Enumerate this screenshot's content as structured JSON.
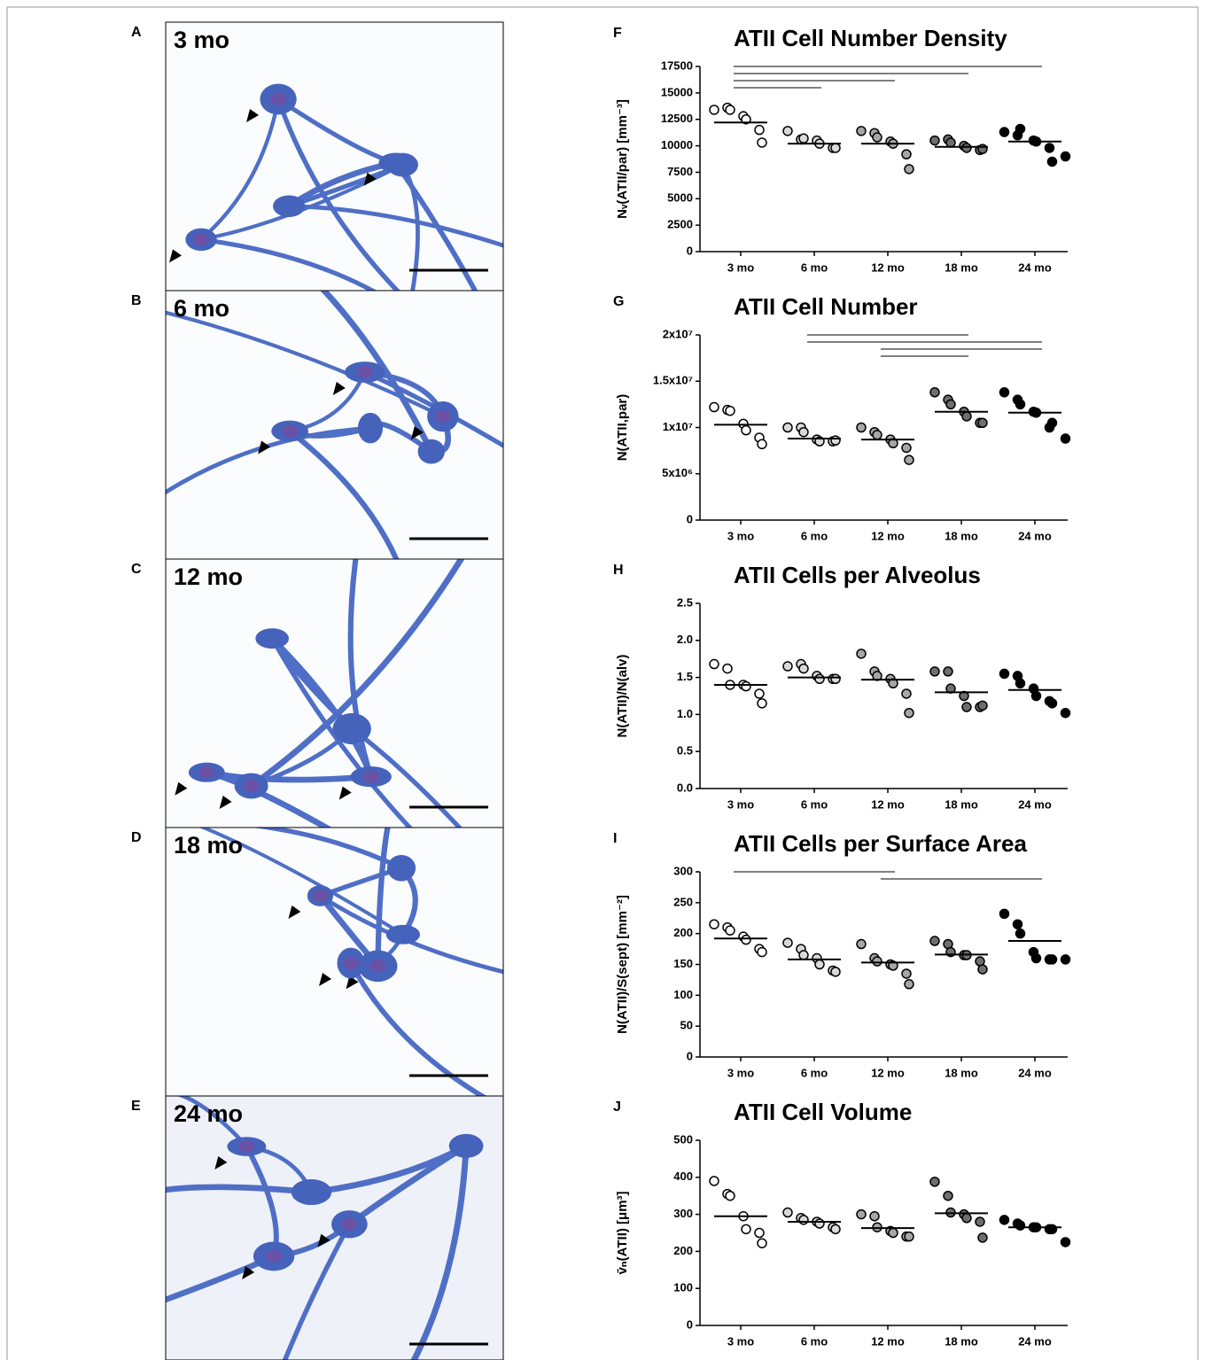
{
  "panels": [
    {
      "letter": "A",
      "label": "3 mo"
    },
    {
      "letter": "B",
      "label": "6 mo"
    },
    {
      "letter": "C",
      "label": "12 mo"
    },
    {
      "letter": "D",
      "label": "18 mo"
    },
    {
      "letter": "E",
      "label": "24 mo"
    }
  ],
  "chart_data": [
    {
      "type": "dotplot",
      "letter": "F",
      "title": "ATII Cell Number Density",
      "ylabel": "Nᵥ(ATII/par) [mm⁻³]",
      "categories": [
        "3 mo",
        "6 mo",
        "12 mo",
        "18 mo",
        "24 mo"
      ],
      "colors": [
        "#ffffff",
        "#d9d9d9",
        "#a6a6a6",
        "#6e6e6e",
        "#000000"
      ],
      "values": [
        [
          13400,
          13600,
          13400,
          12800,
          12500,
          11500,
          10300
        ],
        [
          11400,
          10600,
          10700,
          10500,
          10200,
          9800,
          9800
        ],
        [
          11400,
          11200,
          10800,
          10400,
          10200,
          9200,
          7800
        ],
        [
          10500,
          10600,
          10300,
          10000,
          9800,
          9600,
          9700
        ],
        [
          11300,
          11000,
          11600,
          10500,
          10400,
          9800,
          8500,
          9000
        ]
      ],
      "means": [
        12200,
        10200,
        10200,
        9900,
        10400
      ],
      "significance": [
        [
          0,
          4
        ],
        [
          0,
          3
        ],
        [
          0,
          2
        ],
        [
          0,
          1
        ]
      ],
      "ylim": [
        0,
        17500
      ],
      "yticks": [
        0,
        2500,
        5000,
        7500,
        10000,
        12500,
        15000,
        17500
      ]
    },
    {
      "type": "dotplot",
      "letter": "G",
      "title": "ATII Cell Number",
      "ylabel": "N(ATII,par)",
      "categories": [
        "3 mo",
        "6 mo",
        "12 mo",
        "18 mo",
        "24 mo"
      ],
      "colors": [
        "#ffffff",
        "#d9d9d9",
        "#a6a6a6",
        "#6e6e6e",
        "#000000"
      ],
      "values": [
        [
          12200000,
          11900000,
          11800000,
          10400000,
          9700000,
          8900000,
          8200000
        ],
        [
          10000000,
          10000000,
          9500000,
          8700000,
          8500000,
          8500000,
          8600000
        ],
        [
          10000000,
          9500000,
          9200000,
          8700000,
          8300000,
          7800000,
          6500000
        ],
        [
          13800000,
          13000000,
          12500000,
          11700000,
          11200000,
          10500000,
          10500000
        ],
        [
          13800000,
          13000000,
          12500000,
          11700000,
          11600000,
          10000000,
          10500000,
          8800000
        ]
      ],
      "means": [
        10300000,
        8800000,
        8700000,
        11700000,
        11600000
      ],
      "significance": [
        [
          1,
          3
        ],
        [
          1,
          4
        ],
        [
          2,
          4
        ],
        [
          2,
          3
        ]
      ],
      "ylim": [
        0,
        20000000
      ],
      "yticks": [
        0,
        {
          "value": 5000000,
          "label": "5x10⁶"
        },
        {
          "value": 10000000,
          "label": "1x10⁷"
        },
        {
          "value": 15000000,
          "label": "1.5x10⁷"
        },
        {
          "value": 20000000,
          "label": "2x10⁷"
        }
      ]
    },
    {
      "type": "dotplot",
      "letter": "H",
      "title": "ATII Cells per Alveolus",
      "ylabel": "N(ATII)/N(alv)",
      "categories": [
        "3 mo",
        "6 mo",
        "12 mo",
        "18 mo",
        "24 mo"
      ],
      "colors": [
        "#ffffff",
        "#d9d9d9",
        "#a6a6a6",
        "#6e6e6e",
        "#000000"
      ],
      "values": [
        [
          1.68,
          1.62,
          1.4,
          1.4,
          1.38,
          1.28,
          1.15
        ],
        [
          1.65,
          1.68,
          1.62,
          1.52,
          1.48,
          1.48,
          1.48
        ],
        [
          1.82,
          1.58,
          1.52,
          1.48,
          1.42,
          1.28,
          1.02
        ],
        [
          1.58,
          1.58,
          1.35,
          1.25,
          1.1,
          1.1,
          1.12
        ],
        [
          1.55,
          1.52,
          1.42,
          1.35,
          1.25,
          1.18,
          1.15,
          1.02
        ]
      ],
      "means": [
        1.4,
        1.5,
        1.47,
        1.3,
        1.33
      ],
      "significance": [],
      "ylim": [
        0,
        2.5
      ],
      "yticks": [
        {
          "value": 0,
          "label": "0.0"
        },
        0.5,
        {
          "value": 1,
          "label": "1.0"
        },
        1.5,
        {
          "value": 2,
          "label": "2.0"
        },
        2.5
      ]
    },
    {
      "type": "dotplot",
      "letter": "I",
      "title": "ATII Cells per Surface Area",
      "ylabel": "N(ATII)/S(sept) [mm⁻²]",
      "categories": [
        "3 mo",
        "6 mo",
        "12 mo",
        "18 mo",
        "24 mo"
      ],
      "colors": [
        "#ffffff",
        "#d9d9d9",
        "#a6a6a6",
        "#6e6e6e",
        "#000000"
      ],
      "values": [
        [
          215,
          210,
          205,
          195,
          190,
          175,
          170
        ],
        [
          185,
          175,
          165,
          160,
          150,
          140,
          138
        ],
        [
          183,
          160,
          155,
          150,
          148,
          135,
          118
        ],
        [
          188,
          183,
          170,
          165,
          165,
          155,
          142
        ],
        [
          232,
          215,
          200,
          170,
          160,
          158,
          158,
          158
        ]
      ],
      "means": [
        192,
        158,
        153,
        166,
        188
      ],
      "significance": [
        [
          0,
          2
        ],
        [
          2,
          4
        ]
      ],
      "ylim": [
        0,
        300
      ],
      "yticks": [
        0,
        50,
        100,
        150,
        200,
        250,
        300
      ]
    },
    {
      "type": "dotplot",
      "letter": "J",
      "title": "ATII Cell Volume",
      "ylabel": "v̄ₙ(ATII) [μm³]",
      "categories": [
        "3 mo",
        "6 mo",
        "12 mo",
        "18 mo",
        "24 mo"
      ],
      "colors": [
        "#ffffff",
        "#d9d9d9",
        "#a6a6a6",
        "#6e6e6e",
        "#000000"
      ],
      "values": [
        [
          390,
          355,
          350,
          295,
          260,
          250,
          222
        ],
        [
          305,
          290,
          285,
          280,
          275,
          265,
          260
        ],
        [
          300,
          295,
          265,
          255,
          250,
          240,
          240
        ],
        [
          388,
          350,
          305,
          300,
          290,
          280,
          237
        ],
        [
          285,
          275,
          270,
          265,
          265,
          260,
          260,
          225
        ]
      ],
      "means": [
        295,
        280,
        263,
        303,
        265
      ],
      "significance": [],
      "ylim": [
        0,
        500
      ],
      "yticks": [
        0,
        100,
        200,
        300,
        400,
        500
      ]
    }
  ]
}
